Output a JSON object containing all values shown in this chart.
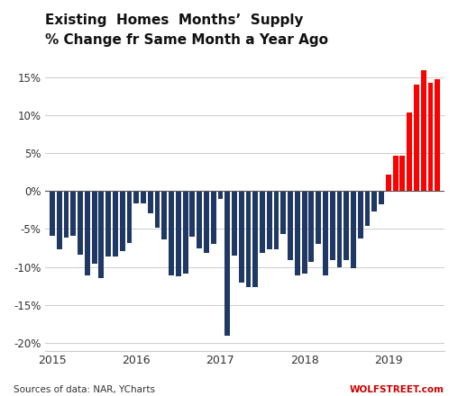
{
  "title_line1": "Existing  Homes  Months’  Supply",
  "title_line2": "% Change fr Same Month a Year Ago",
  "source_text": "Sources of data: NAR, YCharts",
  "watermark": "WOLFSTREET.com",
  "ylim": [
    -21,
    18
  ],
  "yticks": [
    -20,
    -15,
    -10,
    -5,
    0,
    5,
    10,
    15
  ],
  "bar_color_negative": "#1f3864",
  "bar_color_positive": "#ff0000",
  "background_color": "#ffffff",
  "grid_color": "#cccccc",
  "values": [
    -5.9,
    -7.7,
    -6.1,
    -5.9,
    -8.4,
    -11.1,
    -9.6,
    -11.5,
    -8.6,
    -8.6,
    -7.9,
    -6.8,
    -1.6,
    -1.6,
    -2.9,
    -4.8,
    -6.4,
    -11.1,
    -11.2,
    -10.9,
    -6.0,
    -7.6,
    -8.2,
    -7.0,
    -1.0,
    -19.0,
    -8.5,
    -12.0,
    -12.7,
    -12.7,
    -8.1,
    -7.7,
    -7.7,
    -5.6,
    -9.1,
    -11.1,
    -10.9,
    -9.3,
    -7.0,
    -11.1,
    -9.1,
    -10.0,
    -9.1,
    -10.2,
    -6.2,
    -4.6,
    -2.7,
    -1.8,
    2.2,
    4.7,
    4.6,
    10.3,
    14.0,
    15.9,
    14.3,
    14.7
  ],
  "x_tick_positions": [
    0,
    12,
    24,
    36,
    48
  ],
  "x_tick_labels": [
    "2015",
    "2016",
    "2017",
    "2018",
    "2019"
  ],
  "n_bars": 56
}
